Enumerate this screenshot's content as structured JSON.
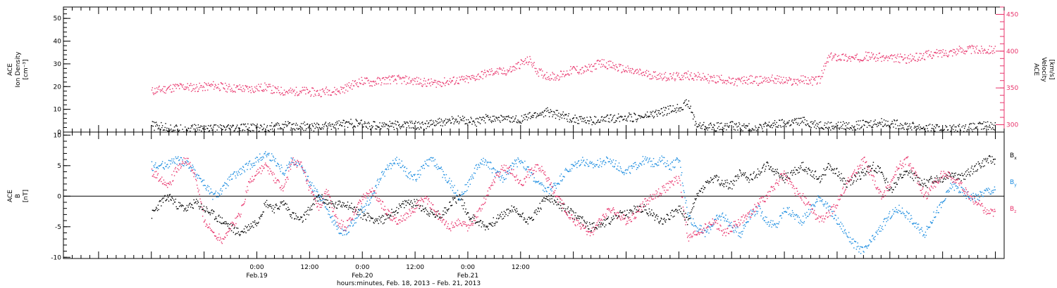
{
  "chart_data": [
    {
      "type": "scatter",
      "panel": "top",
      "left_axis": {
        "label_lines": [
          "ACE",
          "Ion Density",
          "[cm⁻³]"
        ],
        "ylim": [
          0,
          55
        ],
        "ticks": [
          0,
          10,
          20,
          30,
          40,
          50
        ],
        "tick_labels": [
          "0",
          "10",
          "20",
          "30",
          "40",
          "50"
        ]
      },
      "right_axis": {
        "label_lines": [
          "ACE",
          "Velocity",
          "[km/s]"
        ],
        "ylim": [
          290,
          460
        ],
        "ticks": [
          300,
          350,
          400,
          450
        ],
        "tick_labels": [
          "300",
          "350",
          "400",
          "450"
        ],
        "color": "#e8336b"
      },
      "series": [
        {
          "color": "#e8336b",
          "axis": "right",
          "x": [
            0,
            2,
            4,
            6,
            8,
            10,
            12,
            14,
            16,
            18,
            20,
            22,
            24,
            26,
            28,
            30,
            32,
            34,
            36,
            38,
            40,
            42,
            44,
            46,
            48,
            50,
            52,
            54,
            56,
            58,
            60,
            62,
            64,
            66,
            68,
            70,
            72,
            74,
            76,
            78,
            80,
            82,
            84,
            86,
            88,
            90,
            92,
            94,
            96,
            98,
            100,
            102,
            104,
            106,
            108,
            110,
            112,
            114,
            116,
            118,
            120,
            122,
            124,
            126,
            128,
            130,
            132,
            134,
            136,
            138,
            140,
            142,
            144,
            146,
            148,
            150,
            152,
            154,
            156,
            158,
            160,
            162,
            164,
            166,
            168,
            170,
            172,
            174,
            176,
            178,
            180,
            182,
            184,
            186,
            188,
            190
          ],
          "y": [
            346,
            348,
            350,
            352,
            352,
            351,
            352,
            354,
            352,
            350,
            350,
            349,
            350,
            352,
            347,
            346,
            345,
            347,
            345,
            344,
            347,
            346,
            350,
            356,
            360,
            358,
            360,
            362,
            362,
            361,
            360,
            358,
            357,
            358,
            360,
            361,
            362,
            366,
            370,
            373,
            372,
            376,
            384,
            388,
            372,
            367,
            366,
            370,
            376,
            374,
            378,
            385,
            382,
            378,
            375,
            372,
            370,
            368,
            367,
            365,
            366,
            368,
            366,
            364,
            362,
            363,
            358,
            360,
            362,
            360,
            363,
            362,
            360,
            359,
            362,
            360,
            362,
            392,
            393,
            392,
            390,
            394,
            393,
            392,
            390,
            391,
            390,
            392,
            395,
            397,
            398,
            400,
            402,
            403,
            402,
            403
          ]
        },
        {
          "color": "#000000",
          "axis": "left",
          "x": [
            0,
            2,
            4,
            6,
            8,
            10,
            12,
            14,
            16,
            18,
            20,
            22,
            24,
            26,
            28,
            30,
            32,
            34,
            36,
            38,
            40,
            42,
            44,
            46,
            48,
            50,
            52,
            54,
            56,
            58,
            60,
            62,
            64,
            66,
            68,
            70,
            72,
            74,
            76,
            78,
            80,
            82,
            84,
            86,
            88,
            90,
            92,
            94,
            96,
            98,
            100,
            102,
            104,
            106,
            108,
            110,
            112,
            114,
            116,
            118,
            120,
            122,
            124,
            126,
            128,
            130,
            132,
            134,
            136,
            138,
            140,
            142,
            144,
            146,
            148,
            150,
            152,
            154,
            156,
            158,
            160,
            162,
            164,
            166,
            168,
            170,
            172,
            174,
            176,
            178,
            180,
            182,
            184,
            186,
            188,
            190
          ],
          "y": [
            3,
            2.5,
            2,
            1.5,
            1.5,
            1.8,
            2,
            1.5,
            1.5,
            1.5,
            1.8,
            2,
            2,
            2.2,
            2.5,
            2.8,
            3,
            2.8,
            2.5,
            2.5,
            3,
            3.5,
            3.8,
            4,
            3.5,
            3,
            3.2,
            3.5,
            3,
            3.5,
            3.2,
            3,
            4,
            4.5,
            5,
            5.5,
            5,
            4.5,
            6,
            6.5,
            6,
            5.5,
            6,
            7,
            8,
            9,
            8,
            7,
            6,
            5.5,
            5,
            5.5,
            6,
            6.5,
            7,
            6.5,
            7,
            8,
            9,
            10,
            11,
            13,
            3,
            2.8,
            2.5,
            2.5,
            3,
            2.5,
            2,
            2,
            3,
            3.5,
            4,
            4.5,
            5,
            4,
            3.5,
            3,
            2.8,
            3,
            3,
            3.5,
            4,
            4.5,
            4,
            3.5,
            3,
            2.5,
            2,
            1.8,
            1.5,
            1.5,
            1.8,
            2,
            2.5,
            3
          ]
        }
      ]
    },
    {
      "type": "scatter",
      "panel": "bottom",
      "left_axis": {
        "label_lines": [
          "ACE",
          "B",
          "[nT]"
        ],
        "ylim": [
          -10.2,
          10.5
        ],
        "ticks": [
          -10,
          -5,
          0,
          5,
          10
        ],
        "tick_labels": [
          "-10",
          "-5",
          "0",
          "5",
          "10"
        ]
      },
      "legend": {
        "placement": "right",
        "entries": [
          {
            "name": "Bx",
            "color": "#000000"
          },
          {
            "name": "By",
            "color": "#1a8ce0"
          },
          {
            "name": "Bz",
            "color": "#e8336b"
          }
        ]
      },
      "series": [
        {
          "name": "Bx",
          "color": "#000000",
          "x": [
            0,
            2,
            4,
            6,
            8,
            10,
            12,
            14,
            16,
            18,
            20,
            22,
            24,
            26,
            28,
            30,
            32,
            34,
            36,
            38,
            40,
            42,
            44,
            46,
            48,
            50,
            52,
            54,
            56,
            58,
            60,
            62,
            64,
            66,
            68,
            70,
            72,
            74,
            76,
            78,
            80,
            82,
            84,
            86,
            88,
            90,
            92,
            94,
            96,
            98,
            100,
            102,
            104,
            106,
            108,
            110,
            112,
            114,
            116,
            118,
            120,
            122,
            124,
            126,
            128,
            130,
            132,
            134,
            136,
            138,
            140,
            142,
            144,
            146,
            148,
            150,
            152,
            154,
            156,
            158,
            160,
            162,
            164,
            166,
            168,
            170,
            172,
            174,
            176,
            178,
            180,
            182,
            184,
            186,
            188,
            190
          ],
          "y": [
            -3,
            -1,
            0,
            -1.5,
            -2,
            -1,
            -2,
            -3,
            -4,
            -5,
            -6,
            -5,
            -4,
            -1,
            -2,
            -1,
            -3,
            -4,
            -2,
            0,
            -1,
            -1.5,
            -1,
            -2,
            -3,
            -3.5,
            -4,
            -3,
            -2,
            -1,
            -1,
            -2,
            -3,
            -3,
            -1,
            0,
            -3,
            -4,
            -5,
            -4,
            -3,
            -2,
            -3,
            -4,
            -2,
            0,
            -1,
            -2,
            -3,
            -4,
            -5,
            -4.5,
            -4,
            -3,
            -3,
            -2,
            -2,
            -3,
            -4,
            -3,
            -2,
            -4,
            0,
            2,
            3,
            2,
            2,
            4,
            3,
            4,
            5,
            4,
            3,
            4,
            5,
            4,
            3,
            5,
            4,
            2,
            3,
            4,
            5,
            4,
            1,
            3,
            4,
            3,
            2,
            3,
            3,
            4,
            3,
            4,
            5,
            6
          ]
        },
        {
          "name": "By",
          "color": "#1a8ce0",
          "x": [
            0,
            2,
            4,
            6,
            8,
            10,
            12,
            14,
            16,
            18,
            20,
            22,
            24,
            26,
            28,
            30,
            32,
            34,
            36,
            38,
            40,
            42,
            44,
            46,
            48,
            50,
            52,
            54,
            56,
            58,
            60,
            62,
            64,
            66,
            68,
            70,
            72,
            74,
            76,
            78,
            80,
            82,
            84,
            86,
            88,
            90,
            92,
            94,
            96,
            98,
            100,
            102,
            104,
            106,
            108,
            110,
            112,
            114,
            116,
            118,
            120,
            122,
            124,
            126,
            128,
            130,
            132,
            134,
            136,
            138,
            140,
            142,
            144,
            146,
            148,
            150,
            152,
            154,
            156,
            158,
            160,
            162,
            164,
            166,
            168,
            170,
            172,
            174,
            176,
            178,
            180,
            182,
            184,
            186,
            188,
            190
          ],
          "y": [
            5,
            5,
            5.5,
            6,
            5.5,
            4,
            2,
            0,
            1,
            3,
            4,
            5,
            6,
            7,
            6,
            4,
            6,
            5,
            2,
            0,
            -2,
            -5,
            -6,
            -4,
            -2,
            0,
            3,
            5,
            6,
            4,
            3,
            5,
            6,
            4,
            2,
            0,
            2,
            5,
            6,
            4,
            3,
            5,
            6,
            4,
            2,
            1,
            2,
            4,
            5,
            6,
            5,
            5.5,
            6,
            5,
            4,
            5,
            6,
            5.5,
            6,
            5,
            6,
            -3,
            -5,
            -6,
            -4,
            -3,
            -5,
            -6,
            -3,
            -2,
            -4,
            -5,
            -2,
            -3,
            -4,
            -2,
            0,
            -2,
            -4,
            -6,
            -8,
            -9,
            -7,
            -5,
            -3,
            -2,
            -3,
            -5,
            -6,
            -3,
            -1,
            2,
            1,
            0,
            0,
            1
          ]
        },
        {
          "name": "Bz",
          "color": "#e8336b",
          "x": [
            0,
            2,
            4,
            6,
            8,
            10,
            12,
            14,
            16,
            18,
            20,
            22,
            24,
            26,
            28,
            30,
            32,
            34,
            36,
            38,
            40,
            42,
            44,
            46,
            48,
            50,
            52,
            54,
            56,
            58,
            60,
            62,
            64,
            66,
            68,
            70,
            72,
            74,
            76,
            78,
            80,
            82,
            84,
            86,
            88,
            90,
            92,
            94,
            96,
            98,
            100,
            102,
            104,
            106,
            108,
            110,
            112,
            114,
            116,
            118,
            120,
            122,
            124,
            126,
            128,
            130,
            132,
            134,
            136,
            138,
            140,
            142,
            144,
            146,
            148,
            150,
            152,
            154,
            156,
            158,
            160,
            162,
            164,
            166,
            168,
            170,
            172,
            174,
            176,
            178,
            180,
            182,
            184,
            186,
            188,
            190
          ],
          "y": [
            4,
            3,
            2,
            5,
            6,
            3,
            -4,
            -6,
            -7,
            -5,
            -3,
            2,
            4,
            5,
            3,
            1,
            6,
            5,
            1,
            -2,
            1,
            -4,
            -5,
            -3,
            0,
            1,
            -1,
            -3,
            -4,
            -3,
            -2,
            0,
            -2,
            -4,
            -5,
            -4,
            -5,
            -3,
            0,
            3,
            5,
            4,
            2,
            4,
            5,
            3,
            0,
            -2,
            -4,
            -5,
            -6,
            -4,
            -2,
            -3,
            -4,
            -3,
            -1,
            0,
            1,
            2,
            3,
            -7,
            -6,
            -5,
            -4,
            -6,
            -5,
            -4,
            -3,
            -1,
            0,
            2,
            4,
            1,
            0,
            -2,
            -4,
            -3,
            -1,
            2,
            4,
            6,
            3,
            0,
            2,
            5,
            6,
            3,
            0,
            2,
            4,
            3,
            2,
            0,
            -1,
            -2.5
          ]
        }
      ]
    }
  ],
  "x_axis": {
    "xlim": [
      -20,
      194
    ],
    "ticks": [
      0,
      12,
      24,
      36,
      48,
      60,
      72,
      84,
      96,
      108,
      120,
      132,
      144,
      156,
      168,
      180,
      192
    ],
    "label_values": [
      24,
      36,
      48,
      60,
      72,
      84
    ],
    "time_labels": [
      "0:00",
      "12:00",
      "0:00",
      "12:00",
      "0:00",
      "12:00"
    ],
    "date_labels": [
      "Feb.19",
      "",
      "Feb.20",
      "",
      "Feb.21",
      ""
    ],
    "title": "hours:minutes, Feb. 18, 2013 – Feb. 21, 2013"
  }
}
